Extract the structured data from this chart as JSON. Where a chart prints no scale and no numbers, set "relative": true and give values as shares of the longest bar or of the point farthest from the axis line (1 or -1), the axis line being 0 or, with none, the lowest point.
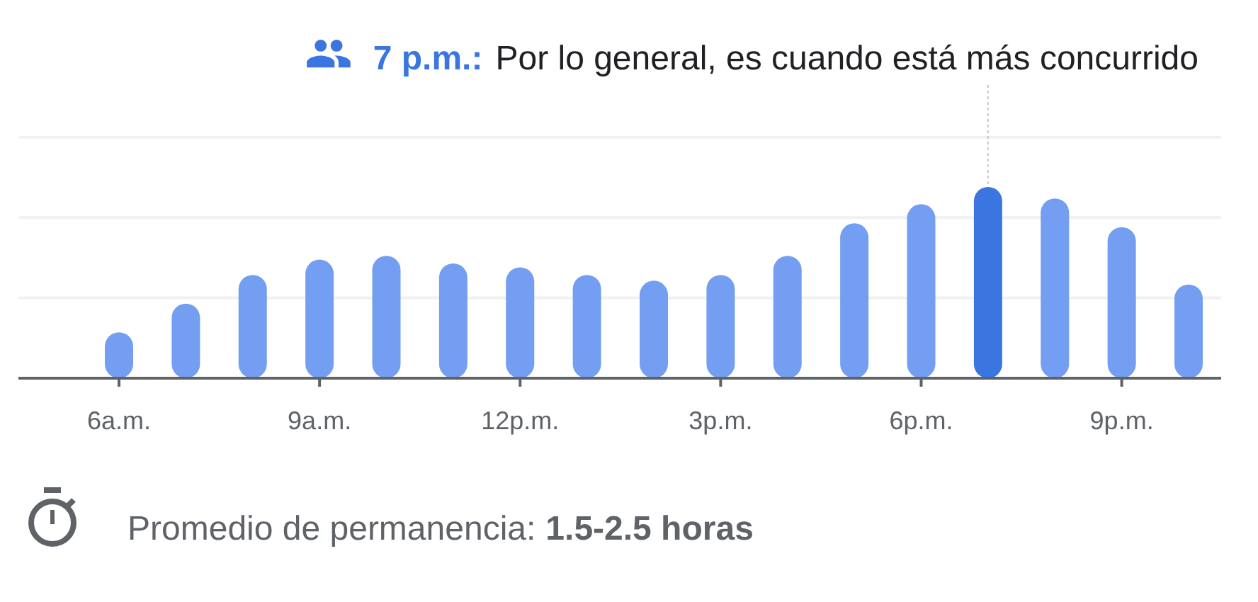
{
  "chart_data": {
    "type": "bar",
    "relative": true,
    "categories": [
      "6a.m.",
      null,
      null,
      "9a.m.",
      null,
      null,
      "12p.m.",
      null,
      null,
      "3p.m.",
      null,
      null,
      "6p.m.",
      null,
      null,
      "9p.m.",
      null
    ],
    "values": [
      0.24,
      0.39,
      0.54,
      0.62,
      0.64,
      0.6,
      0.58,
      0.54,
      0.51,
      0.54,
      0.64,
      0.81,
      0.91,
      1,
      0.94,
      0.79,
      0.49
    ],
    "colors": [
      "#739ef1",
      "#739ef1",
      "#739ef1",
      "#739ef1",
      "#739ef1",
      "#739ef1",
      "#739ef1",
      "#739ef1",
      "#739ef1",
      "#739ef1",
      "#739ef1",
      "#739ef1",
      "#739ef1",
      "#3b76e0",
      "#739ef1",
      "#739ef1",
      "#739ef1"
    ],
    "ref_lines": [
      {
        "axis": "y",
        "value": 0.42,
        "color": "#f1f1f1"
      },
      {
        "axis": "y",
        "value": 0.84,
        "color": "#f1f1f1"
      },
      {
        "axis": "y",
        "value": 1.26,
        "color": "#f1f1f1"
      }
    ],
    "annotations": [
      "7 p.m.:",
      "Por lo general, es cuando está más concurrido",
      "Promedio de permanencia:",
      "1.5-2.5 horas"
    ]
  }
}
